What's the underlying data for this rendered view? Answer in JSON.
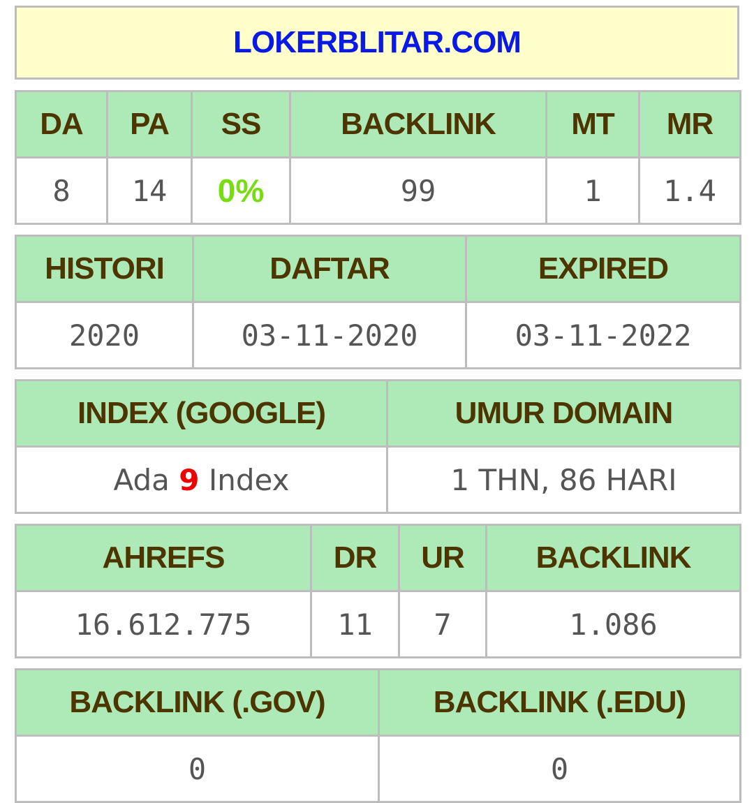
{
  "title": "LOKERBLITAR.COM",
  "table1": {
    "headers": [
      "DA",
      "PA",
      "SS",
      "BACKLINK",
      "MT",
      "MR"
    ],
    "values": [
      "8",
      "14",
      "0%",
      "99",
      "1",
      "1.4"
    ]
  },
  "table2": {
    "headers": [
      "HISTORI",
      "DAFTAR",
      "EXPIRED"
    ],
    "values": [
      "2020",
      "03-11-2020",
      "03-11-2022"
    ]
  },
  "table3": {
    "headers": [
      "INDEX (GOOGLE)",
      "UMUR DOMAIN"
    ],
    "index_prefix": "Ada",
    "index_count": "9",
    "index_suffix": "Index",
    "umur": "1 THN, 86 HARI"
  },
  "table4": {
    "headers": [
      "AHREFS",
      "DR",
      "UR",
      "BACKLINK"
    ],
    "values": [
      "16.612.775",
      "11",
      "7",
      "1.086"
    ]
  },
  "table5": {
    "headers": [
      "BACKLINK (.GOV)",
      "BACKLINK (.EDU)"
    ],
    "values": [
      "0",
      "0"
    ]
  },
  "colors": {
    "title_bg": "#ffffcc",
    "title_text": "#0a1ae6",
    "header_bg": "#aeeab8",
    "header_text": "#4d3500",
    "ss_value": "#77dd11",
    "index_count": "#ee0000"
  }
}
